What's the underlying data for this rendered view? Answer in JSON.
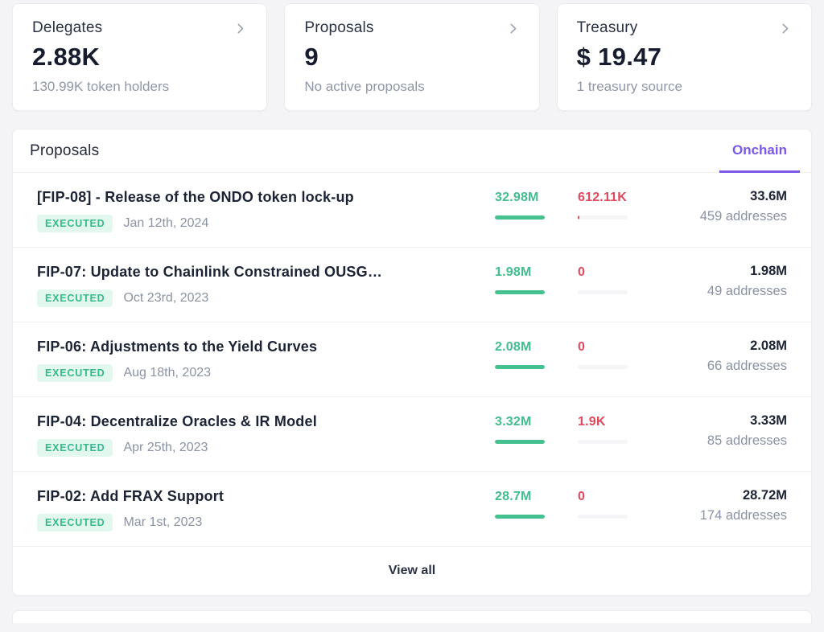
{
  "colors": {
    "accent_purple": "#7a58e8",
    "vote_for_green": "#45c08f",
    "vote_against_red": "#e0485d",
    "badge_bg": "#e2f8ef",
    "badge_text": "#38b98d",
    "page_bg": "#f4f4f6"
  },
  "stat_cards": [
    {
      "title": "Delegates",
      "value": "2.88K",
      "subtitle": "130.99K token holders",
      "icon": "chevron-right-icon"
    },
    {
      "title": "Proposals",
      "value": "9",
      "subtitle": "No active proposals",
      "icon": "chevron-right-icon"
    },
    {
      "title": "Treasury",
      "value": "$ 19.47",
      "subtitle": "1 treasury source",
      "icon": "chevron-right-icon"
    }
  ],
  "proposals_panel": {
    "title": "Proposals",
    "tab_label": "Onchain",
    "view_all_label": "View all",
    "rows": [
      {
        "title": "[FIP-08] - Release of the ONDO token lock-up",
        "status": "EXECUTED",
        "date": "Jan 12th, 2024",
        "votes_for": "32.98M",
        "for_pct": 100,
        "votes_against": "612.11K",
        "against_pct": 4,
        "total": "33.6M",
        "addresses": "459 addresses"
      },
      {
        "title": "FIP-07: Update to Chainlink Constrained OUSG…",
        "status": "EXECUTED",
        "date": "Oct 23rd, 2023",
        "votes_for": "1.98M",
        "for_pct": 100,
        "votes_against": "0",
        "against_pct": 0,
        "total": "1.98M",
        "addresses": "49 addresses"
      },
      {
        "title": "FIP-06: Adjustments to the Yield Curves",
        "status": "EXECUTED",
        "date": "Aug 18th, 2023",
        "votes_for": "2.08M",
        "for_pct": 100,
        "votes_against": "0",
        "against_pct": 0,
        "total": "2.08M",
        "addresses": "66 addresses"
      },
      {
        "title": "FIP-04: Decentralize Oracles & IR Model",
        "status": "EXECUTED",
        "date": "Apr 25th, 2023",
        "votes_for": "3.32M",
        "for_pct": 100,
        "votes_against": "1.9K",
        "against_pct": 0,
        "total": "3.33M",
        "addresses": "85 addresses"
      },
      {
        "title": "FIP-02: Add FRAX Support",
        "status": "EXECUTED",
        "date": "Mar 1st, 2023",
        "votes_for": "28.7M",
        "for_pct": 100,
        "votes_against": "0",
        "against_pct": 0,
        "total": "28.72M",
        "addresses": "174 addresses"
      }
    ]
  }
}
